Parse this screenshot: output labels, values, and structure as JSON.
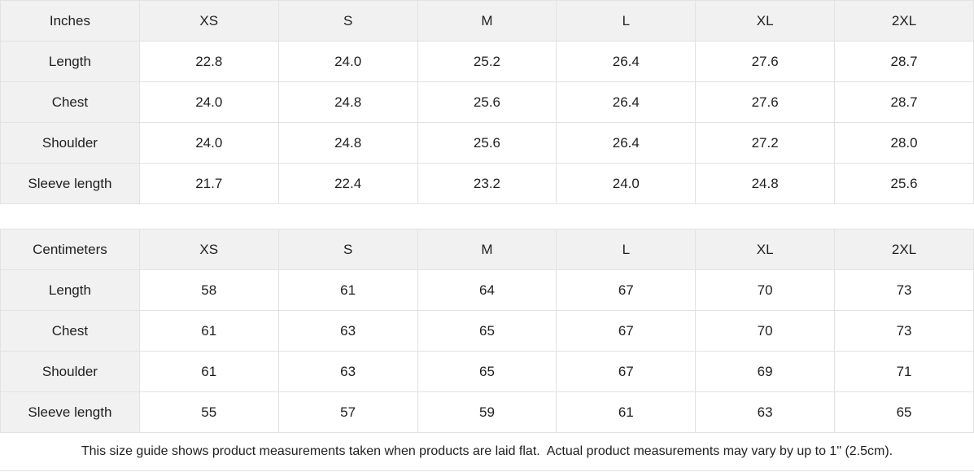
{
  "theme": {
    "header_bg": "#f1f1f1",
    "cell_bg": "#ffffff",
    "border_color": "#e2e2e2",
    "text_color": "#1f1f1f"
  },
  "tables": [
    {
      "id": "inches",
      "header": [
        "Inches",
        "XS",
        "S",
        "M",
        "L",
        "XL",
        "2XL"
      ],
      "rows": [
        {
          "label": "Length",
          "values": [
            "22.8",
            "24.0",
            "25.2",
            "26.4",
            "27.6",
            "28.7"
          ]
        },
        {
          "label": "Chest",
          "values": [
            "24.0",
            "24.8",
            "25.6",
            "26.4",
            "27.6",
            "28.7"
          ]
        },
        {
          "label": "Shoulder",
          "values": [
            "24.0",
            "24.8",
            "25.6",
            "26.4",
            "27.2",
            "28.0"
          ]
        },
        {
          "label": "Sleeve length",
          "values": [
            "21.7",
            "22.4",
            "23.2",
            "24.0",
            "24.8",
            "25.6"
          ]
        }
      ]
    },
    {
      "id": "centimeters",
      "header": [
        "Centimeters",
        "XS",
        "S",
        "M",
        "L",
        "XL",
        "2XL"
      ],
      "rows": [
        {
          "label": "Length",
          "values": [
            "58",
            "61",
            "64",
            "67",
            "70",
            "73"
          ]
        },
        {
          "label": "Chest",
          "values": [
            "61",
            "63",
            "65",
            "67",
            "70",
            "73"
          ]
        },
        {
          "label": "Shoulder",
          "values": [
            "61",
            "63",
            "65",
            "67",
            "69",
            "71"
          ]
        },
        {
          "label": "Sleeve length",
          "values": [
            "55",
            "57",
            "59",
            "61",
            "63",
            "65"
          ]
        }
      ]
    }
  ],
  "footer": {
    "note": "This size guide shows product measurements taken when products are laid flat.  Actual product measurements may vary by up to 1\" (2.5cm)."
  }
}
